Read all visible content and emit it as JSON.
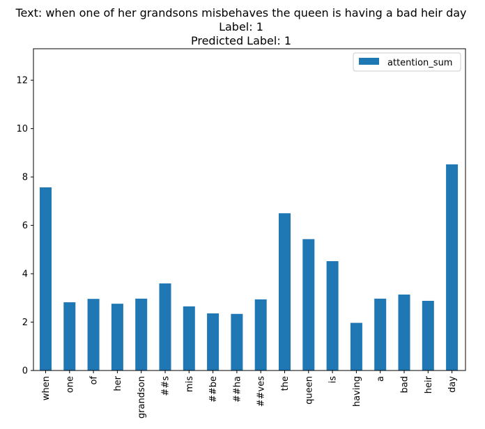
{
  "chart_data": {
    "type": "bar",
    "title_lines": [
      "Text: when one of her grandsons misbehaves the queen is having a bad heir day",
      "Label: 1",
      "Predicted Label: 1"
    ],
    "xlabel": "",
    "ylabel": "",
    "categories": [
      "when",
      "one",
      "of",
      "her",
      "grandson",
      "##s",
      "mis",
      "##be",
      "##ha",
      "##ves",
      "the",
      "queen",
      "is",
      "having",
      "a",
      "bad",
      "heir",
      "day"
    ],
    "series": [
      {
        "name": "attention_sum",
        "color": "#1f77b4",
        "values": [
          7.57,
          2.82,
          2.96,
          2.76,
          2.97,
          3.6,
          2.65,
          2.36,
          2.34,
          2.94,
          6.5,
          5.43,
          4.52,
          1.97,
          2.97,
          3.14,
          2.88,
          8.52
        ]
      }
    ],
    "ylim": [
      0,
      13.3
    ],
    "yticks": [
      0,
      2,
      4,
      6,
      8,
      10,
      12
    ],
    "legend_position": "upper right",
    "grid": false
  }
}
